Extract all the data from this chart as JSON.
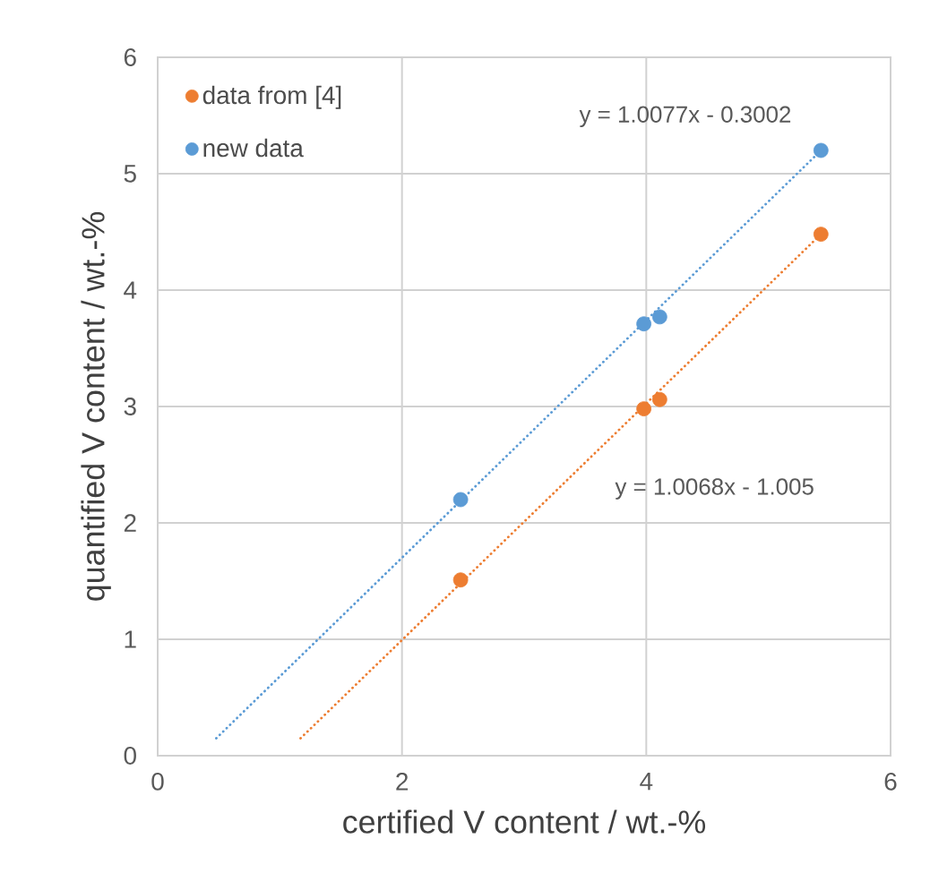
{
  "chart_data": {
    "type": "scatter",
    "xlabel": "certified V content / wt.-%",
    "ylabel": "quantified V content / wt.-%",
    "xlim": [
      0,
      6
    ],
    "ylim": [
      0,
      6
    ],
    "xticks": [
      0,
      2,
      4,
      6
    ],
    "yticks": [
      0,
      1,
      2,
      3,
      4,
      5,
      6
    ],
    "grid": true,
    "legend": "top left",
    "marker": "circle",
    "series": [
      {
        "type": "line",
        "color": "#5b9bd5",
        "x": [
          0.48,
          5.43
        ],
        "values": [
          0.15,
          5.2
        ],
        "line_style": "dotted",
        "marker": "none"
      },
      {
        "type": "line",
        "color": "#ed7d31",
        "x": [
          1.17,
          5.43
        ],
        "values": [
          0.15,
          4.48
        ],
        "line_style": "dotted",
        "marker": "none"
      },
      {
        "name": "data from [4]",
        "color": "#ed7d31",
        "x": [
          2.48,
          3.98,
          4.11,
          5.43
        ],
        "values": [
          1.51,
          2.98,
          3.06,
          4.48
        ]
      },
      {
        "name": "new data",
        "color": "#5b9bd5",
        "x": [
          2.48,
          3.98,
          4.11,
          5.43
        ],
        "values": [
          2.2,
          3.71,
          3.77,
          5.2
        ]
      }
    ],
    "annotations": [
      "y = 1.0077x - 0.3002",
      "y = 1.0068x - 1.005"
    ]
  }
}
